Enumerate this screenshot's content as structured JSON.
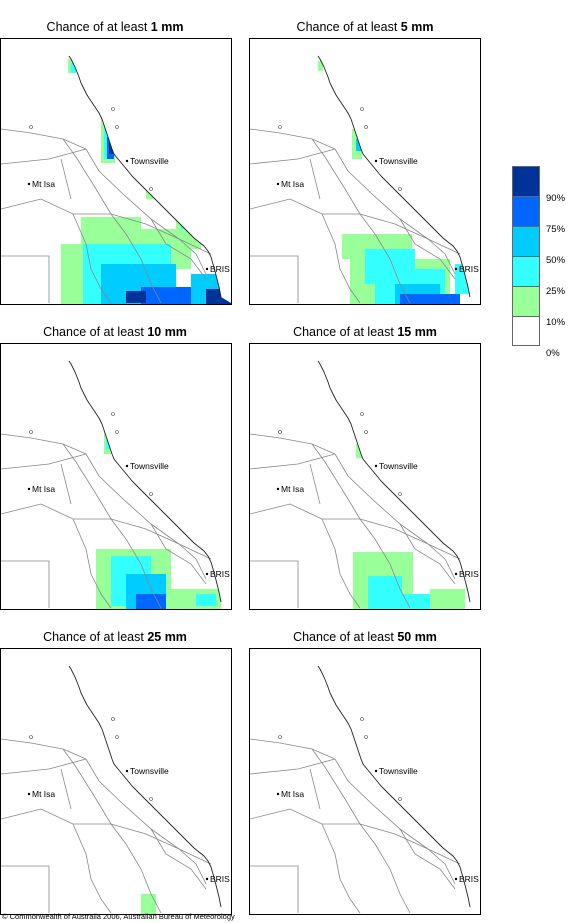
{
  "panels": [
    {
      "prefix": "Chance of at least ",
      "threshold": "1 mm"
    },
    {
      "prefix": "Chance of at least ",
      "threshold": "5 mm"
    },
    {
      "prefix": "Chance of at least ",
      "threshold": "10 mm"
    },
    {
      "prefix": "Chance of at least ",
      "threshold": "15 mm"
    },
    {
      "prefix": "Chance of at least ",
      "threshold": "25 mm"
    },
    {
      "prefix": "Chance of at least ",
      "threshold": "50 mm"
    }
  ],
  "places": {
    "mt_isa": "Mt Isa",
    "townsville": "Townsville",
    "bris": "BRIS"
  },
  "legend": {
    "colors": [
      "#003399",
      "#0066ff",
      "#00ccff",
      "#33ffff",
      "#99ff99",
      "#ffffff"
    ],
    "labels": [
      "90%",
      "75%",
      "50%",
      "25%",
      "10%",
      "0%"
    ]
  },
  "copyright": "© Commonwealth of Australia 2006, Australian Bureau of Meteorology"
}
